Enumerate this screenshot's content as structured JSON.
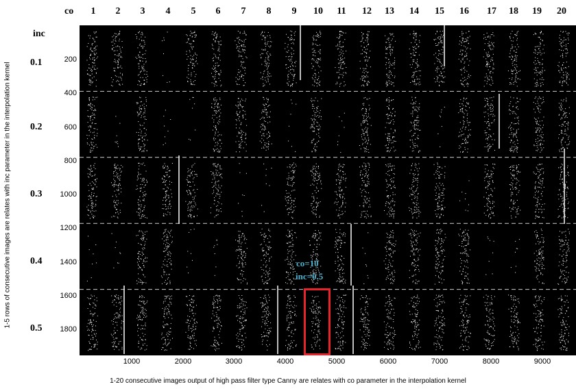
{
  "header": {
    "co_label": "co",
    "inc_label": "inc",
    "columns": [
      "1",
      "2",
      "3",
      "4",
      "5",
      "6",
      "7",
      "8",
      "9",
      "10",
      "11",
      "12",
      "13",
      "14",
      "15",
      "16",
      "17",
      "18",
      "19",
      "20"
    ]
  },
  "rows": [
    "0.1",
    "0.2",
    "0.3",
    "0.4",
    "0.5"
  ],
  "y_ticks": [
    "200",
    "400",
    "600",
    "800",
    "1000",
    "1200",
    "1400",
    "1600",
    "1800"
  ],
  "x_ticks": [
    "1000",
    "2000",
    "3000",
    "4000",
    "5000",
    "6000",
    "7000",
    "8000",
    "9000"
  ],
  "annotation": {
    "line1": "co=10",
    "line2": "inc=0.5"
  },
  "captions": {
    "y": "1-5 rows of consecutive images are relates with inc parameter in the interpolation kernel",
    "x": "1-20 consecutive images output of high pass filter type Canny are relates with co parameter in the interpolation kernel"
  },
  "colors": {
    "background": "#000000",
    "highlight": "#e8232a",
    "annotation": "#4fb3d0",
    "edge_pixels": "#ffffff"
  }
}
